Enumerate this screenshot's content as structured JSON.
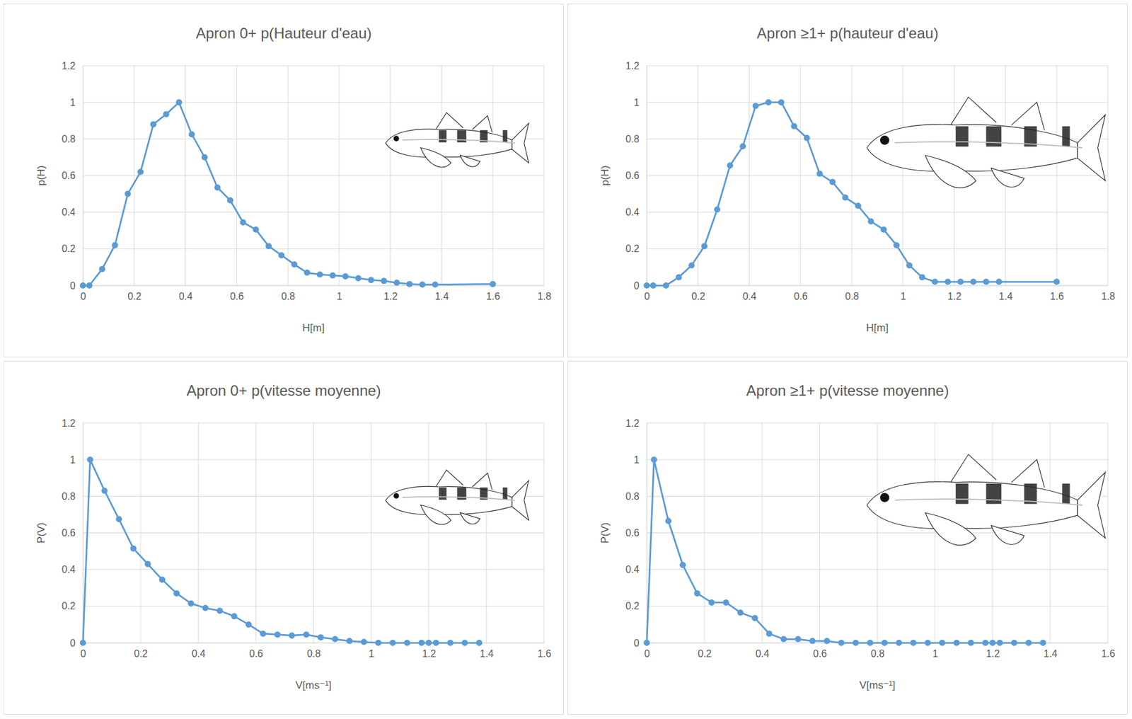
{
  "chart_data": [
    {
      "type": "line",
      "title": "Apron 0+  p(Hauteur d'eau)",
      "x_label": "H[m]",
      "y_label": "p(H)",
      "color": "#5b9bd5",
      "marker": "circle",
      "grid": true,
      "x": [
        0,
        0.025,
        0.075,
        0.125,
        0.175,
        0.225,
        0.275,
        0.325,
        0.375,
        0.425,
        0.475,
        0.525,
        0.575,
        0.625,
        0.675,
        0.725,
        0.775,
        0.825,
        0.875,
        0.925,
        0.975,
        1.025,
        1.075,
        1.125,
        1.175,
        1.225,
        1.275,
        1.325,
        1.375,
        1.6
      ],
      "values": [
        0,
        0,
        0.09,
        0.22,
        0.5,
        0.62,
        0.88,
        0.935,
        1.0,
        0.825,
        0.7,
        0.535,
        0.465,
        0.345,
        0.305,
        0.215,
        0.165,
        0.115,
        0.07,
        0.06,
        0.055,
        0.05,
        0.04,
        0.03,
        0.025,
        0.015,
        0.008,
        0.005,
        0.005,
        0.008
      ],
      "xlim": [
        0,
        1.8
      ],
      "xticks": [
        0,
        0.2,
        0.4,
        0.6,
        0.8,
        1,
        1.2,
        1.4,
        1.6,
        1.8
      ],
      "ylim": [
        0,
        1.2
      ],
      "yticks": [
        0,
        0.2,
        0.4,
        0.6,
        0.8,
        1,
        1.2
      ]
    },
    {
      "type": "line",
      "title": "Apron ≥1+  p(hauteur d'eau)",
      "x_label": "H[m]",
      "y_label": "p(H)",
      "color": "#5b9bd5",
      "marker": "circle",
      "grid": true,
      "x": [
        0,
        0.025,
        0.075,
        0.125,
        0.175,
        0.225,
        0.275,
        0.325,
        0.375,
        0.425,
        0.475,
        0.525,
        0.575,
        0.625,
        0.675,
        0.725,
        0.775,
        0.825,
        0.875,
        0.925,
        0.975,
        1.025,
        1.075,
        1.125,
        1.175,
        1.225,
        1.275,
        1.325,
        1.375,
        1.6
      ],
      "values": [
        0,
        0,
        0,
        0.045,
        0.11,
        0.215,
        0.415,
        0.655,
        0.76,
        0.98,
        1.0,
        1.0,
        0.87,
        0.805,
        0.61,
        0.565,
        0.48,
        0.435,
        0.35,
        0.305,
        0.22,
        0.11,
        0.045,
        0.02,
        0.02,
        0.02,
        0.02,
        0.02,
        0.02,
        0.02
      ],
      "xlim": [
        0,
        1.8
      ],
      "xticks": [
        0,
        0.2,
        0.4,
        0.6,
        0.8,
        1,
        1.2,
        1.4,
        1.6,
        1.8
      ],
      "ylim": [
        0,
        1.2
      ],
      "yticks": [
        0,
        0.2,
        0.4,
        0.6,
        0.8,
        1,
        1.2
      ]
    },
    {
      "type": "line",
      "title": "Apron 0+  p(vitesse moyenne)",
      "x_label": "V[ms⁻¹]",
      "y_label": "P(V)",
      "color": "#5b9bd5",
      "marker": "circle",
      "grid": true,
      "x": [
        0,
        0.025,
        0.075,
        0.125,
        0.175,
        0.225,
        0.275,
        0.325,
        0.375,
        0.425,
        0.475,
        0.525,
        0.575,
        0.625,
        0.675,
        0.725,
        0.775,
        0.825,
        0.875,
        0.925,
        0.975,
        1.025,
        1.075,
        1.125,
        1.175,
        1.2,
        1.225,
        1.275,
        1.325,
        1.375
      ],
      "values": [
        0,
        1.0,
        0.83,
        0.675,
        0.515,
        0.43,
        0.345,
        0.27,
        0.215,
        0.19,
        0.175,
        0.145,
        0.1,
        0.05,
        0.045,
        0.04,
        0.045,
        0.03,
        0.02,
        0.01,
        0.005,
        0,
        0,
        0,
        0,
        0,
        0,
        0,
        0,
        0
      ],
      "xlim": [
        0,
        1.6
      ],
      "xticks": [
        0,
        0.2,
        0.4,
        0.6,
        0.8,
        1,
        1.2,
        1.4,
        1.6
      ],
      "ylim": [
        0,
        1.2
      ],
      "yticks": [
        0,
        0.2,
        0.4,
        0.6,
        0.8,
        1,
        1.2
      ]
    },
    {
      "type": "line",
      "title": "Apron ≥1+  p(vitesse moyenne)",
      "x_label": "V[ms⁻¹]",
      "y_label": "P(V)",
      "color": "#5b9bd5",
      "marker": "circle",
      "grid": true,
      "x": [
        0,
        0.025,
        0.075,
        0.125,
        0.175,
        0.225,
        0.275,
        0.325,
        0.375,
        0.425,
        0.475,
        0.525,
        0.575,
        0.625,
        0.675,
        0.725,
        0.775,
        0.825,
        0.875,
        0.925,
        0.975,
        1.025,
        1.075,
        1.125,
        1.175,
        1.2,
        1.225,
        1.275,
        1.325,
        1.375
      ],
      "values": [
        0,
        1.0,
        0.665,
        0.425,
        0.27,
        0.22,
        0.22,
        0.165,
        0.135,
        0.05,
        0.02,
        0.02,
        0.01,
        0.01,
        0,
        0,
        0,
        0,
        0,
        0,
        0,
        0,
        0,
        0,
        0,
        0,
        0,
        0,
        0,
        0
      ],
      "xlim": [
        0,
        1.6
      ],
      "xticks": [
        0,
        0.2,
        0.4,
        0.6,
        0.8,
        1,
        1.2,
        1.4,
        1.6
      ],
      "ylim": [
        0,
        1.2
      ],
      "yticks": [
        0,
        0.2,
        0.4,
        0.6,
        0.8,
        1,
        1.2
      ]
    }
  ]
}
